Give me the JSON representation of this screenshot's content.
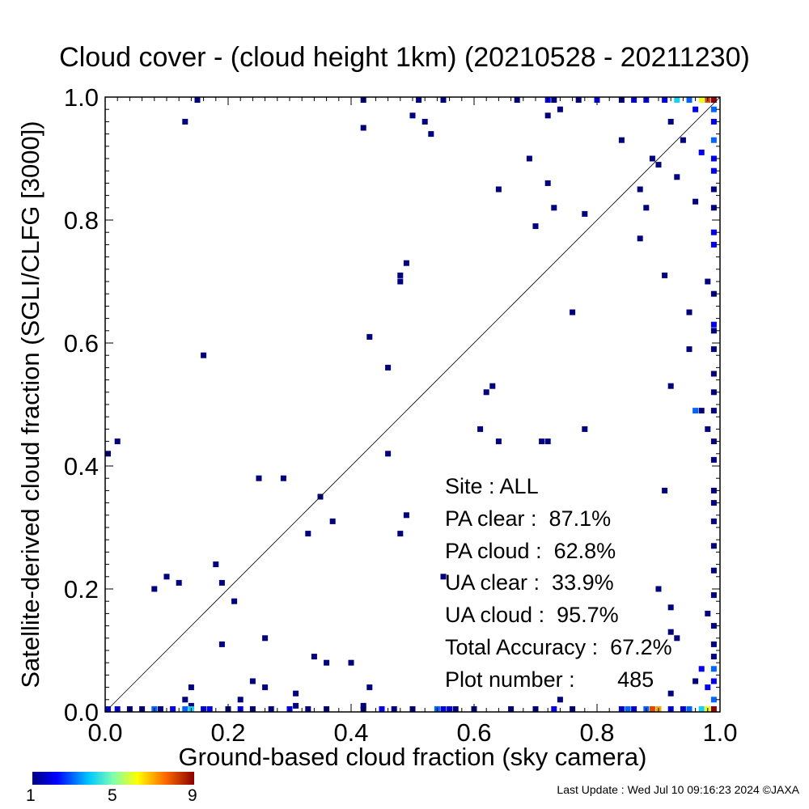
{
  "title": "Cloud cover - (cloud height 1km)  (20210528 - 20211230)",
  "xlabel": "Ground-based cloud fraction (sky camera)",
  "ylabel": "Satellite-derived cloud fraction (SGLI/CLFG [3000])",
  "stats": {
    "site": "Site : ALL",
    "pa_clear": "PA clear :  87.1%",
    "pa_cloud": "PA cloud :  62.8%",
    "ua_clear": "UA clear :  33.9%",
    "ua_cloud": "UA cloud :  95.7%",
    "total_accuracy": "Total Accuracy :  67.2%",
    "plot_number": "Plot number :       485"
  },
  "colorbar": {
    "labels": [
      "1",
      "5",
      "9"
    ],
    "min": 1,
    "max": 9
  },
  "footer": "Last Update : Wed Jul 10 09:16:23 2024  ©JAXA",
  "chart_data": {
    "type": "heatmap",
    "xlim": [
      0,
      1
    ],
    "ylim": [
      0,
      1
    ],
    "xticks": [
      "0.0",
      "0.2",
      "0.4",
      "0.6",
      "0.8",
      "1.0"
    ],
    "yticks": [
      "0.0",
      "0.2",
      "0.4",
      "0.6",
      "0.8",
      "1.0"
    ],
    "bin_size": 0.01,
    "diagonal": true,
    "points": [
      [
        0.15,
        1.0,
        1
      ],
      [
        0.42,
        1.0,
        1
      ],
      [
        0.51,
        1.0,
        1
      ],
      [
        0.55,
        1.0,
        1
      ],
      [
        0.67,
        1.0,
        1
      ],
      [
        0.72,
        1.0,
        2
      ],
      [
        0.73,
        1.0,
        1
      ],
      [
        0.77,
        1.0,
        1
      ],
      [
        0.8,
        1.0,
        2
      ],
      [
        0.84,
        1.0,
        1
      ],
      [
        0.86,
        1.0,
        2
      ],
      [
        0.88,
        1.0,
        2
      ],
      [
        0.91,
        1.0,
        2
      ],
      [
        0.93,
        1.0,
        4
      ],
      [
        0.95,
        1.0,
        3
      ],
      [
        0.97,
        1.0,
        6
      ],
      [
        0.98,
        1.0,
        8
      ],
      [
        0.99,
        1.0,
        9
      ],
      [
        0.13,
        0.96,
        1
      ],
      [
        0.42,
        0.95,
        1
      ],
      [
        0.5,
        0.97,
        1
      ],
      [
        0.52,
        0.96,
        1
      ],
      [
        0.53,
        0.94,
        1
      ],
      [
        0.72,
        0.97,
        1
      ],
      [
        0.74,
        0.98,
        1
      ],
      [
        0.92,
        0.96,
        1
      ],
      [
        0.96,
        0.98,
        2
      ],
      [
        0.99,
        0.98,
        3
      ],
      [
        0.69,
        0.9,
        1
      ],
      [
        0.72,
        0.86,
        1
      ],
      [
        0.84,
        0.93,
        1
      ],
      [
        0.89,
        0.9,
        1
      ],
      [
        0.9,
        0.89,
        1
      ],
      [
        0.94,
        0.93,
        1
      ],
      [
        0.97,
        0.91,
        2
      ],
      [
        0.99,
        0.93,
        3
      ],
      [
        0.64,
        0.85,
        1
      ],
      [
        0.73,
        0.82,
        1
      ],
      [
        0.7,
        0.79,
        1
      ],
      [
        0.78,
        0.81,
        1
      ],
      [
        0.87,
        0.85,
        1
      ],
      [
        0.88,
        0.82,
        1
      ],
      [
        0.93,
        0.87,
        1
      ],
      [
        0.96,
        0.83,
        1
      ],
      [
        0.99,
        0.88,
        2
      ],
      [
        0.99,
        0.78,
        2
      ],
      [
        0.87,
        0.77,
        1
      ],
      [
        0.49,
        0.73,
        1
      ],
      [
        0.48,
        0.71,
        1
      ],
      [
        0.48,
        0.7,
        1
      ],
      [
        0.91,
        0.71,
        1
      ],
      [
        0.98,
        0.7,
        1
      ],
      [
        0.76,
        0.65,
        1
      ],
      [
        0.95,
        0.65,
        1
      ],
      [
        0.99,
        0.63,
        2
      ],
      [
        0.43,
        0.61,
        1
      ],
      [
        0.16,
        0.58,
        1
      ],
      [
        0.46,
        0.56,
        1
      ],
      [
        0.95,
        0.59,
        1
      ],
      [
        0.99,
        0.59,
        1
      ],
      [
        0.99,
        0.55,
        1
      ],
      [
        0.63,
        0.53,
        1
      ],
      [
        0.62,
        0.52,
        1
      ],
      [
        0.92,
        0.53,
        1
      ],
      [
        0.96,
        0.49,
        3
      ],
      [
        0.99,
        0.49,
        1
      ],
      [
        0.97,
        0.49,
        1
      ],
      [
        0.61,
        0.46,
        1
      ],
      [
        0.78,
        0.46,
        1
      ],
      [
        0.98,
        0.46,
        1
      ],
      [
        0.64,
        0.44,
        1
      ],
      [
        0.71,
        0.44,
        1
      ],
      [
        0.72,
        0.44,
        1
      ],
      [
        0.02,
        0.44,
        1
      ],
      [
        0.0,
        0.42,
        1
      ],
      [
        0.46,
        0.42,
        1
      ],
      [
        0.99,
        0.41,
        1
      ],
      [
        0.25,
        0.38,
        1
      ],
      [
        0.29,
        0.38,
        1
      ],
      [
        0.35,
        0.35,
        1
      ],
      [
        0.91,
        0.36,
        1
      ],
      [
        0.99,
        0.36,
        1
      ],
      [
        0.37,
        0.31,
        1
      ],
      [
        0.49,
        0.32,
        1
      ],
      [
        0.33,
        0.29,
        1
      ],
      [
        0.48,
        0.29,
        1
      ],
      [
        0.99,
        0.34,
        1
      ],
      [
        0.99,
        0.31,
        1
      ],
      [
        0.18,
        0.24,
        1
      ],
      [
        0.1,
        0.22,
        1
      ],
      [
        0.12,
        0.21,
        1
      ],
      [
        0.08,
        0.2,
        1
      ],
      [
        0.19,
        0.21,
        1
      ],
      [
        0.55,
        0.22,
        1
      ],
      [
        0.9,
        0.2,
        1
      ],
      [
        0.99,
        0.23,
        1
      ],
      [
        0.21,
        0.18,
        1
      ],
      [
        0.92,
        0.17,
        1
      ],
      [
        0.98,
        0.16,
        1
      ],
      [
        0.26,
        0.12,
        1
      ],
      [
        0.19,
        0.11,
        1
      ],
      [
        0.92,
        0.13,
        1
      ],
      [
        0.93,
        0.12,
        1
      ],
      [
        0.99,
        0.11,
        1
      ],
      [
        0.34,
        0.09,
        1
      ],
      [
        0.36,
        0.08,
        1
      ],
      [
        0.4,
        0.08,
        1
      ],
      [
        0.99,
        0.09,
        1
      ],
      [
        0.14,
        0.04,
        1
      ],
      [
        0.24,
        0.05,
        1
      ],
      [
        0.26,
        0.04,
        1
      ],
      [
        0.31,
        0.03,
        1
      ],
      [
        0.43,
        0.04,
        1
      ],
      [
        0.97,
        0.07,
        2
      ],
      [
        0.99,
        0.07,
        3
      ],
      [
        0.13,
        0.02,
        1
      ],
      [
        0.22,
        0.02,
        1
      ],
      [
        0.31,
        0.01,
        1
      ],
      [
        0.42,
        0.01,
        1
      ],
      [
        0.74,
        0.02,
        1
      ],
      [
        0.92,
        0.03,
        1
      ],
      [
        0.96,
        0.05,
        1
      ],
      [
        0.98,
        0.04,
        2
      ],
      [
        0.14,
        0.01,
        1
      ],
      [
        0.0,
        0.0,
        2
      ],
      [
        0.02,
        0.0,
        2
      ],
      [
        0.04,
        0.0,
        1
      ],
      [
        0.06,
        0.0,
        1
      ],
      [
        0.08,
        0.0,
        3
      ],
      [
        0.09,
        0.0,
        1
      ],
      [
        0.11,
        0.0,
        2
      ],
      [
        0.13,
        0.0,
        3
      ],
      [
        0.14,
        0.0,
        4
      ],
      [
        0.16,
        0.0,
        2
      ],
      [
        0.17,
        0.0,
        2
      ],
      [
        0.2,
        0.0,
        1
      ],
      [
        0.22,
        0.0,
        2
      ],
      [
        0.24,
        0.0,
        1
      ],
      [
        0.27,
        0.0,
        1
      ],
      [
        0.3,
        0.0,
        2
      ],
      [
        0.33,
        0.0,
        1
      ],
      [
        0.36,
        0.0,
        1
      ],
      [
        0.42,
        0.0,
        1
      ],
      [
        0.45,
        0.0,
        2
      ],
      [
        0.47,
        0.0,
        1
      ],
      [
        0.5,
        0.0,
        1
      ],
      [
        0.54,
        0.0,
        3
      ],
      [
        0.55,
        0.0,
        2
      ],
      [
        0.56,
        0.0,
        2
      ],
      [
        0.57,
        0.0,
        1
      ],
      [
        0.6,
        0.0,
        1
      ],
      [
        0.66,
        0.0,
        1
      ],
      [
        0.7,
        0.0,
        1
      ],
      [
        0.73,
        0.0,
        2
      ],
      [
        0.76,
        0.0,
        1
      ],
      [
        0.84,
        0.0,
        2
      ],
      [
        0.85,
        0.0,
        3
      ],
      [
        0.86,
        0.0,
        2
      ],
      [
        0.88,
        0.0,
        3
      ],
      [
        0.89,
        0.0,
        8
      ],
      [
        0.9,
        0.0,
        7
      ],
      [
        0.92,
        0.0,
        2
      ],
      [
        0.94,
        0.0,
        2
      ],
      [
        0.95,
        0.0,
        3
      ],
      [
        0.97,
        0.0,
        4
      ],
      [
        0.98,
        0.0,
        6
      ],
      [
        0.99,
        0.0,
        9
      ],
      [
        0.99,
        0.96,
        2
      ],
      [
        0.99,
        0.9,
        2
      ],
      [
        0.99,
        0.85,
        1
      ],
      [
        0.99,
        0.82,
        1
      ],
      [
        0.99,
        0.76,
        2
      ],
      [
        0.99,
        0.68,
        1
      ],
      [
        0.99,
        0.62,
        1
      ],
      [
        0.99,
        0.52,
        1
      ],
      [
        0.99,
        0.44,
        1
      ],
      [
        0.99,
        0.27,
        1
      ],
      [
        0.99,
        0.19,
        1
      ],
      [
        0.99,
        0.14,
        1
      ],
      [
        0.99,
        0.05,
        2
      ],
      [
        0.99,
        0.02,
        3
      ]
    ]
  }
}
